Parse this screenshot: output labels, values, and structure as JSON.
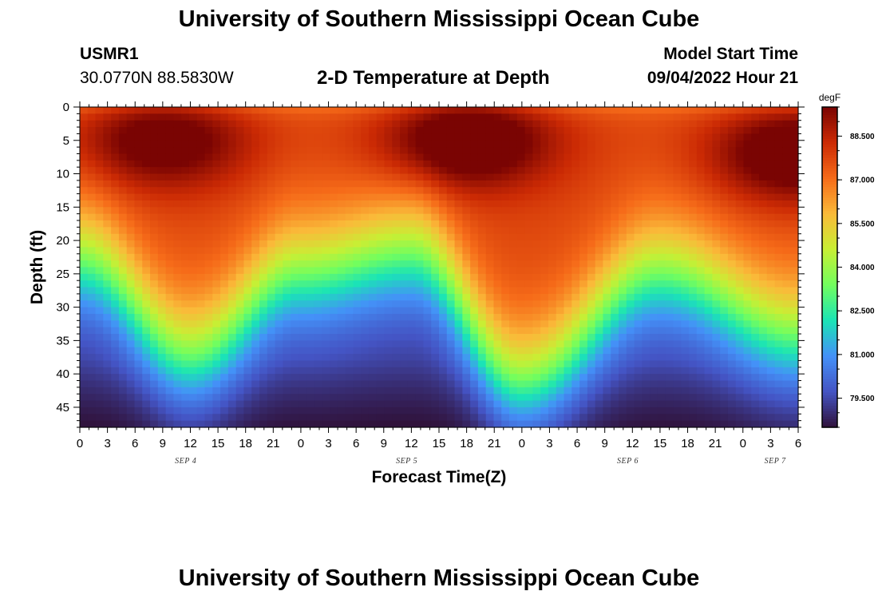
{
  "header": {
    "title": "University of Southern Mississippi Ocean Cube",
    "station_id": "USMR1",
    "station_coords": "30.0770N  88.5830W",
    "plot_title": "2-D Temperature at Depth",
    "model_start_label": "Model Start Time",
    "model_start_value": "09/04/2022 Hour 21"
  },
  "footer": {
    "title": "University of Southern Mississippi Ocean Cube"
  },
  "chart_data": {
    "type": "heatmap",
    "title": "2-D Temperature at Depth",
    "xlabel": "Forecast Time(Z)",
    "ylabel": "Depth (ft)",
    "x_hours_range": [
      0,
      78
    ],
    "x_tick_labels": [
      "0",
      "3",
      "6",
      "9",
      "12",
      "15",
      "18",
      "21",
      "0",
      "3",
      "6",
      "9",
      "12",
      "15",
      "18",
      "21",
      "0",
      "3",
      "6",
      "9",
      "12",
      "15",
      "18",
      "21",
      "0",
      "3",
      "6"
    ],
    "date_labels": [
      {
        "text": "SEP 4",
        "hour": 11.5
      },
      {
        "text": "SEP 5",
        "hour": 35.5
      },
      {
        "text": "SEP 6",
        "hour": 59.5
      },
      {
        "text": "SEP 7",
        "hour": 75.5
      }
    ],
    "y_range": [
      0,
      48
    ],
    "y_ticks": [
      0,
      5,
      10,
      15,
      20,
      25,
      30,
      35,
      40,
      45
    ],
    "colorbar": {
      "unit": "degF",
      "range": [
        78.5,
        89.5
      ],
      "tick_values": [
        88.5,
        87.0,
        85.5,
        84.0,
        82.5,
        81.0,
        79.5
      ],
      "tick_labels": [
        "88.500",
        "87.000",
        "85.500",
        "84.000",
        "82.500",
        "81.000",
        "79.500"
      ],
      "colors": [
        "#30123b",
        "#4454c4",
        "#4491f8",
        "#1ae4b6",
        "#72fe5e",
        "#c8ef34",
        "#faba39",
        "#f66b19",
        "#cb2a04",
        "#7a0403"
      ]
    },
    "thermocline_depth_ft": [
      {
        "hour": 0,
        "depth": 16
      },
      {
        "hour": 12,
        "depth": 30
      },
      {
        "hour": 24,
        "depth": 18
      },
      {
        "hour": 36,
        "depth": 15
      },
      {
        "hour": 48,
        "depth": 34
      },
      {
        "hour": 63,
        "depth": 18
      },
      {
        "hour": 78,
        "depth": 27
      }
    ],
    "warm_cores": [
      {
        "hour": 9,
        "depth": 5,
        "value": 89.0
      },
      {
        "hour": 42,
        "depth": 5,
        "value": 89.4
      },
      {
        "hour": 78,
        "depth": 7,
        "value": 89.3
      }
    ],
    "surface_temp_f": 86.5,
    "bottom_temp_f": 79.0
  }
}
